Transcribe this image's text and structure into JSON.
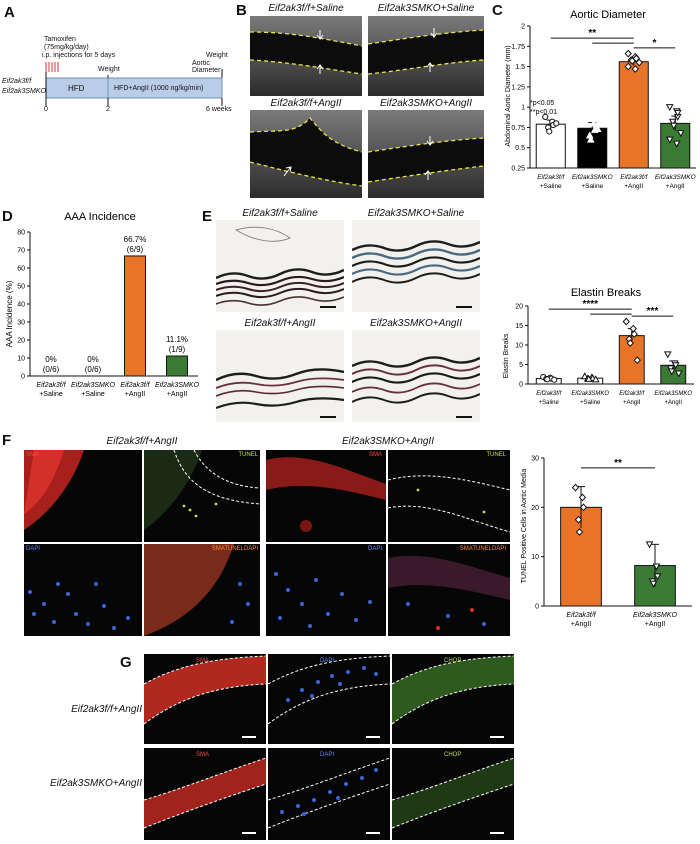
{
  "panels": {
    "A": "A",
    "B": "B",
    "C": "C",
    "D": "D",
    "E": "E",
    "F": "F",
    "G": "G"
  },
  "timeline": {
    "treatment": "Tamoxifen",
    "dose": "(75mg/kg/day)",
    "route": "i.p. injections for 5 days",
    "weight_label": "Weight",
    "end_label_1": "Weight",
    "end_label_2": "Aortic Diameter",
    "group_1": "Eif2ak3f/f",
    "group_2": "Eif2ak3SMKO",
    "phase_1": "HFD",
    "phase_2": "HFD+AngII (1000 ng/kg/min)",
    "t0": "0",
    "t2": "2",
    "t6": "6 weeks"
  },
  "ultrasound": {
    "tl": "Eif2ak3f/f+Saline",
    "tr": "Eif2ak3SMKO+Saline",
    "bl": "Eif2ak3f/f+AngII",
    "br": "Eif2ak3SMKO+AngII"
  },
  "histology": {
    "tl": "Eif2ak3f/f+Saline",
    "tr": "Eif2ak3SMKO+Saline",
    "bl": "Eif2ak3f/f+AngII",
    "br": "Eif2ak3SMKO+AngII"
  },
  "fluor_F": {
    "left_title": "Eif2ak3f/f+AngII",
    "right_title": "Eif2ak3SMKO+AngII",
    "sma": "SMA",
    "tunel": "TUNEL",
    "dapi": "DAPI",
    "merge": "SMATUNELDAPI"
  },
  "fluor_G": {
    "row1": "Eif2ak3f/f+AngII",
    "row2": "Eif2ak3SMKO+AngII",
    "sma": "SMA",
    "dapi": "DAPI",
    "chop": "CHOP"
  },
  "chart_data": [
    {
      "id": "C",
      "type": "bar",
      "title": "Aortic Diameter",
      "ylabel": "Abdominal Aortic Diameter (mm)",
      "ylim": [
        0.25,
        2.0
      ],
      "yticks": [
        0.25,
        0.5,
        0.75,
        1.0,
        1.25,
        1.5,
        1.75,
        2.0
      ],
      "categories": [
        {
          "line1": "Eif2ak3f/f",
          "line2": "+Saline"
        },
        {
          "line1": "Eif2ak3SMKO",
          "line2": "+Saline"
        },
        {
          "line1": "Eif2ak3f/f",
          "line2": "+AngII"
        },
        {
          "line1": "Eif2ak3SMKO",
          "line2": "+AngII"
        }
      ],
      "values": [
        0.79,
        0.74,
        1.56,
        0.8
      ],
      "errors": [
        0.05,
        0.07,
        0.05,
        0.09
      ],
      "colors": [
        "#ffffff",
        "#000000",
        "#e8742a",
        "#3a7a34"
      ],
      "points": [
        [
          0.88,
          0.82,
          0.78,
          0.75,
          0.7,
          0.8
        ],
        [
          0.9,
          0.8,
          0.72,
          0.65,
          0.6,
          0.73
        ],
        [
          1.66,
          1.62,
          1.6,
          1.58,
          1.57,
          1.55,
          1.5,
          1.47,
          1.6
        ],
        [
          1.0,
          0.95,
          0.88,
          0.82,
          0.77,
          0.68,
          0.6,
          0.55,
          0.93
        ]
      ],
      "annotations": [
        "*p<0.05",
        "**p<0.01"
      ],
      "sig": [
        "**",
        "*"
      ]
    },
    {
      "id": "D",
      "type": "bar",
      "title": "AAA Incidence",
      "ylabel": "AAA Incidence (%)",
      "ylim": [
        0,
        80
      ],
      "yticks": [
        0,
        10,
        20,
        30,
        40,
        50,
        60,
        70,
        80
      ],
      "categories": [
        {
          "line1": "Eif2ak3f/f",
          "line2": "+Saline"
        },
        {
          "line1": "Eif2ak3SMKO",
          "line2": "+Saline"
        },
        {
          "line1": "Eif2ak3f/f",
          "line2": "+AngII"
        },
        {
          "line1": "Eif2ak3SMKO",
          "line2": "+AngII"
        }
      ],
      "values": [
        0,
        0,
        66.7,
        11.1
      ],
      "labels": [
        [
          "0%",
          "(0/6)"
        ],
        [
          "0%",
          "(0/6)"
        ],
        [
          "66.7%",
          "(6/9)"
        ],
        [
          "11.1%",
          "(1/9)"
        ]
      ],
      "colors": [
        "#ffffff",
        "#ffffff",
        "#e8742a",
        "#3a7a34"
      ]
    },
    {
      "id": "E",
      "type": "bar",
      "title": "Elastin Breaks",
      "ylabel": "Elastin Breaks",
      "ylim": [
        0,
        20
      ],
      "yticks": [
        0,
        5,
        10,
        15,
        20
      ],
      "categories": [
        {
          "line1": "Eif2ak3f/f",
          "line2": "+Saline"
        },
        {
          "line1": "Eif2ak3SMKO",
          "line2": "+Saline"
        },
        {
          "line1": "Eif2ak3f/f",
          "line2": "+AngII"
        },
        {
          "line1": "Eif2ak3SMKO",
          "line2": "+AngII"
        }
      ],
      "values": [
        1.4,
        1.5,
        12.4,
        4.8
      ],
      "errors": [
        0.3,
        0.3,
        1.8,
        1.1
      ],
      "colors": [
        "#ffffff",
        "#ffffff",
        "#e8742a",
        "#3a7a34"
      ],
      "points": [
        [
          1.8,
          1.6,
          1.4,
          1.3,
          1.2,
          1.1
        ],
        [
          2.0,
          1.7,
          1.5,
          1.4,
          1.3,
          1.2
        ],
        [
          16.0,
          14.2,
          12.8,
          11.5,
          10.5,
          6.1
        ],
        [
          7.6,
          5.3,
          4.8,
          4.0,
          3.2,
          2.7
        ]
      ],
      "sig": [
        "****",
        "***"
      ]
    },
    {
      "id": "F",
      "type": "bar",
      "ylabel": "TUNEL Positive Cells in Aortic Media",
      "ylim": [
        0,
        30
      ],
      "yticks": [
        0,
        10,
        20,
        30
      ],
      "categories": [
        {
          "line1": "Eif2ak3f/f",
          "line2": "+AngII"
        },
        {
          "line1": "Eif2ak3SMKO",
          "line2": "+AngII"
        }
      ],
      "values": [
        20.0,
        8.2
      ],
      "errors": [
        4.2,
        4.3
      ],
      "colors": [
        "#e8742a",
        "#3a7a34"
      ],
      "points": [
        [
          24.0,
          22.0,
          20.0,
          17.5,
          15.0
        ],
        [
          12.5,
          8.0,
          6.0,
          5.0,
          4.5
        ]
      ],
      "sig": [
        "**"
      ]
    }
  ]
}
